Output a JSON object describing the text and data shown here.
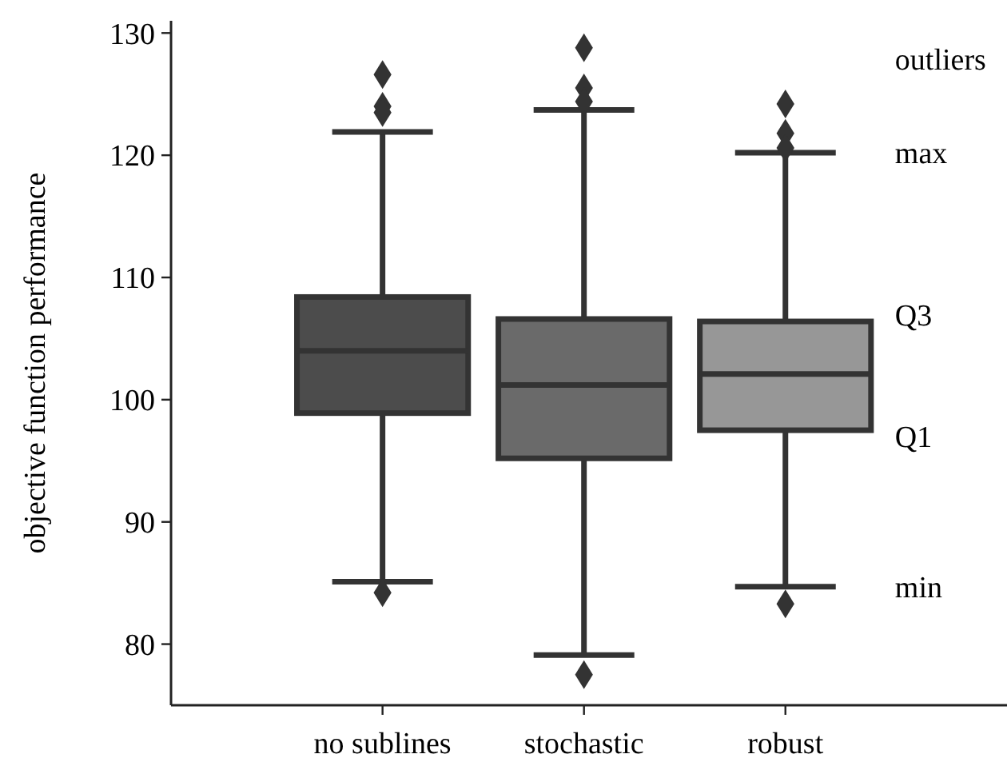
{
  "chart_data": {
    "type": "box",
    "ylabel": "objective function performance",
    "categories": [
      "no sublines",
      "stochastic",
      "robust"
    ],
    "boxes": [
      {
        "low": 85.1,
        "q1": 98.9,
        "median": 104.0,
        "q3": 108.4,
        "high": 121.9,
        "outliers": [
          126.6,
          124.0,
          123.5,
          84.2
        ]
      },
      {
        "low": 79.1,
        "q1": 95.2,
        "median": 101.2,
        "q3": 106.6,
        "high": 123.7,
        "outliers": [
          128.8,
          125.5,
          124.4,
          77.5
        ]
      },
      {
        "low": 84.7,
        "q1": 97.5,
        "median": 102.1,
        "q3": 106.4,
        "high": 120.2,
        "outliers": [
          124.2,
          121.8,
          120.6,
          83.3
        ]
      }
    ],
    "colors": [
      "#4c4c4c",
      "#6a6a6a",
      "#979797"
    ],
    "ylim": [
      75,
      131
    ],
    "yticks": [
      80,
      90,
      100,
      110,
      120,
      130
    ],
    "grid": false,
    "marker": "diamond",
    "annotations": [
      "outliers",
      "max",
      "Q3",
      "Q1",
      "min"
    ]
  }
}
